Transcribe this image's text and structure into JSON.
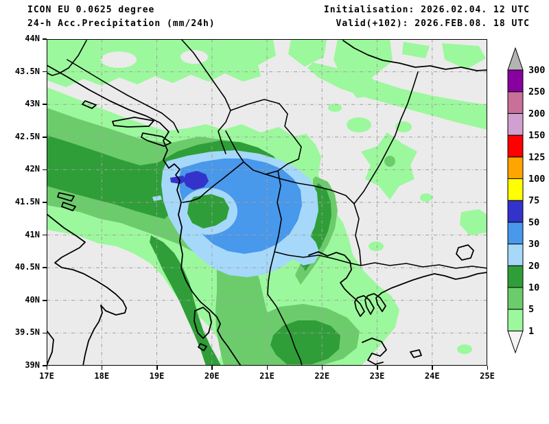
{
  "header": {
    "model": "ICON EU 0.0625 degree",
    "product": "24-h Acc.Precipitation (mm/24h)",
    "initialisation": "Initialisation: 2026.02.04. 12 UTC",
    "valid": "Valid(+102): 2026.FEB.08. 18 UTC"
  },
  "map": {
    "x_tick_labels": [
      "17E",
      "18E",
      "19E",
      "20E",
      "21E",
      "22E",
      "23E",
      "24E",
      "25E"
    ],
    "y_tick_labels": [
      "44N",
      "43.5N",
      "43N",
      "42.5N",
      "42N",
      "41.5N",
      "41N",
      "40.5N",
      "40N",
      "39.5N",
      "39N"
    ]
  },
  "legend": {
    "levels": [
      "1",
      "5",
      "10",
      "20",
      "30",
      "50",
      "75",
      "100",
      "125",
      "150",
      "200",
      "250",
      "300"
    ],
    "cell_colors_bottom_to_top": [
      "#9cf89c",
      "#6ccc6c",
      "#2f9e38",
      "#a6d8fa",
      "#4898ec",
      "#3333cc",
      "#ffff00",
      "#ffa500",
      "#ff0000",
      "#d0a0d0",
      "#c87098",
      "#8800a0"
    ],
    "below_min_color": "#f4f4f4",
    "above_max_color": "#b4b4b4"
  },
  "map_colors": {
    "background": "#ebebeb",
    "grid": "#a0a0a0",
    "outline": "#000000"
  }
}
